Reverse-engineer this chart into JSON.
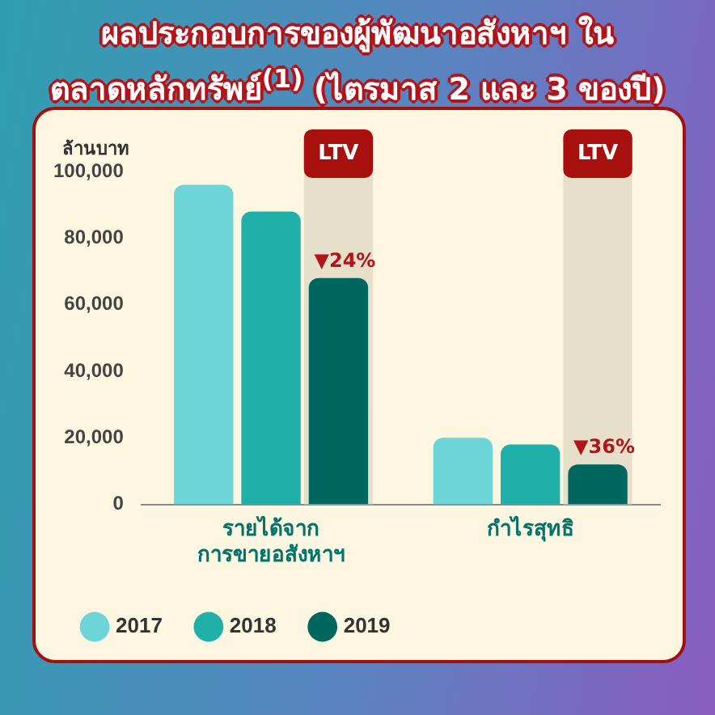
{
  "chart_data": {
    "type": "bar",
    "title": "ผลประกอบการของผู้พัฒนาอสังหาฯ ในตลาดหลักทรัพย์$^{(1)}$ (ไตรมาส 2 และ 3 ของปี)",
    "ylabel": "ล้านบาท",
    "categories": [
      "รายได้จาก\nการขายอสังหาฯ",
      "กำไรสุทธิ"
    ],
    "series": [
      {
        "name": "2017",
        "color": "#6dd5d8",
        "values": [
          96000,
          20000
        ]
      },
      {
        "name": "2018",
        "color": "#1fb0aa",
        "values": [
          88000,
          18000
        ]
      },
      {
        "name": "2019",
        "color": "#006760",
        "values": [
          68000,
          12000
        ]
      }
    ],
    "ylim": [
      0,
      100000
    ],
    "yticks": [
      {
        "value": 0,
        "label": "0"
      },
      {
        "value": 20000,
        "label": "20,000"
      },
      {
        "value": 40000,
        "label": "40,000"
      },
      {
        "value": 60000,
        "label": "60,000"
      },
      {
        "value": 80000,
        "label": "80,000"
      },
      {
        "value": 100000,
        "label": "100,000"
      }
    ],
    "annotations": [
      "LTV",
      "LTV",
      "▼24%",
      "▼36%"
    ],
    "grid": false,
    "legend": "bottom left"
  }
}
